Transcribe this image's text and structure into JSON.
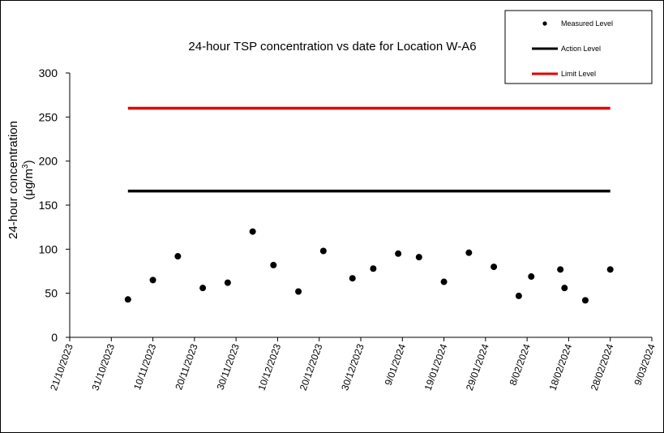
{
  "chart_data": {
    "type": "scatter",
    "title": "24-hour TSP concentration vs date for Location W-A6",
    "ylabel_line1": "24-hour concentration",
    "ylabel_line2_main": "(μg/m",
    "ylabel_line2_sup": "3",
    "ylabel_line2_end": ")",
    "xlim": [
      "2023-10-21",
      "2024-03-09"
    ],
    "ylim": [
      0,
      300
    ],
    "y_ticks": [
      0,
      50,
      100,
      150,
      200,
      250,
      300
    ],
    "x_tick_dates": [
      "2023-10-21",
      "2023-10-31",
      "2023-11-10",
      "2023-11-20",
      "2023-11-30",
      "2023-12-10",
      "2023-12-20",
      "2023-12-30",
      "2024-01-09",
      "2024-01-19",
      "2024-01-29",
      "2024-02-08",
      "2024-02-18",
      "2024-02-28",
      "2024-03-09"
    ],
    "x_tick_labels": [
      "21/10/2023",
      "31/10/2023",
      "10/11/2023",
      "20/11/2023",
      "30/11/2023",
      "10/12/2023",
      "20/12/2023",
      "30/12/2023",
      "9/01/2024",
      "19/01/2024",
      "29/01/2024",
      "8/02/2024",
      "18/02/2024",
      "28/02/2024",
      "9/03/2024"
    ],
    "series": [
      {
        "name": "Measured Level",
        "kind": "scatter",
        "color": "#000000",
        "points": [
          {
            "x": "2023-11-04",
            "y": 43
          },
          {
            "x": "2023-11-10",
            "y": 65
          },
          {
            "x": "2023-11-16",
            "y": 92
          },
          {
            "x": "2023-11-22",
            "y": 56
          },
          {
            "x": "2023-11-28",
            "y": 62
          },
          {
            "x": "2023-12-04",
            "y": 120
          },
          {
            "x": "2023-12-09",
            "y": 82
          },
          {
            "x": "2023-12-15",
            "y": 52
          },
          {
            "x": "2023-12-21",
            "y": 98
          },
          {
            "x": "2023-12-28",
            "y": 67
          },
          {
            "x": "2024-01-02",
            "y": 78
          },
          {
            "x": "2024-01-08",
            "y": 95
          },
          {
            "x": "2024-01-13",
            "y": 91
          },
          {
            "x": "2024-01-19",
            "y": 63
          },
          {
            "x": "2024-01-25",
            "y": 96
          },
          {
            "x": "2024-01-31",
            "y": 80
          },
          {
            "x": "2024-02-06",
            "y": 47
          },
          {
            "x": "2024-02-09",
            "y": 69
          },
          {
            "x": "2024-02-16",
            "y": 77
          },
          {
            "x": "2024-02-17",
            "y": 56
          },
          {
            "x": "2024-02-22",
            "y": 42
          },
          {
            "x": "2024-02-28",
            "y": 77
          }
        ]
      },
      {
        "name": "Action Level",
        "kind": "line",
        "color": "#000000",
        "points": [
          {
            "x": "2023-11-04",
            "y": 166
          },
          {
            "x": "2024-02-28",
            "y": 166
          }
        ]
      },
      {
        "name": "Limit Level",
        "kind": "line",
        "color": "#e00000",
        "points": [
          {
            "x": "2023-11-04",
            "y": 260
          },
          {
            "x": "2024-02-28",
            "y": 260
          }
        ]
      }
    ],
    "legend_position": "top-right",
    "grid": false
  }
}
